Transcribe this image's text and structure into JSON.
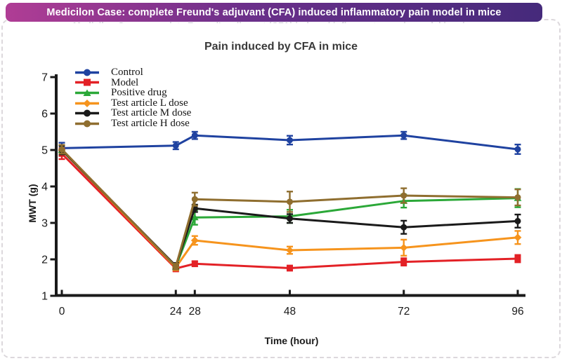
{
  "banner": {
    "title": "Medicilon Case: complete Freund's adjuvant (CFA) induced inflammatory pain model in mice"
  },
  "chart_data": {
    "type": "line",
    "title": "Pain induced by CFA in mice",
    "xlabel": "Time (hour)",
    "ylabel": "MWT (g)",
    "x": [
      0,
      24,
      28,
      48,
      72,
      96
    ],
    "xticks": [
      0,
      24,
      28,
      48,
      72,
      96
    ],
    "yticks": [
      1,
      2,
      3,
      4,
      5,
      6,
      7
    ],
    "xlim": [
      0,
      96
    ],
    "ylim": [
      1,
      7
    ],
    "grid": false,
    "legend_position": "top-left-inside",
    "error_bars": true,
    "series": [
      {
        "name": "Control",
        "color": "#1f42a0",
        "marker": "circle",
        "values": [
          5.05,
          5.12,
          5.4,
          5.27,
          5.4,
          5.02
        ],
        "errors": [
          0.15,
          0.1,
          0.1,
          0.12,
          0.1,
          0.13
        ]
      },
      {
        "name": "Model",
        "color": "#e32126",
        "marker": "square",
        "values": [
          4.9,
          1.75,
          1.88,
          1.76,
          1.93,
          2.02
        ],
        "errors": [
          0.15,
          0.08,
          0.07,
          0.07,
          0.1,
          0.1
        ]
      },
      {
        "name": "Positive drug",
        "color": "#2ba838",
        "marker": "triangle",
        "values": [
          5.0,
          1.8,
          3.15,
          3.18,
          3.6,
          3.68
        ],
        "errors": [
          0.12,
          0.08,
          0.2,
          0.18,
          0.18,
          0.25
        ]
      },
      {
        "name": "Test article L dose",
        "color": "#f6941d",
        "marker": "diamond",
        "values": [
          5.0,
          1.78,
          2.52,
          2.25,
          2.32,
          2.6
        ],
        "errors": [
          0.12,
          0.08,
          0.12,
          0.1,
          0.22,
          0.18
        ]
      },
      {
        "name": "Test article M dose",
        "color": "#1a1a1a",
        "marker": "circle",
        "values": [
          5.0,
          1.82,
          3.4,
          3.12,
          2.88,
          3.05
        ],
        "errors": [
          0.12,
          0.08,
          0.1,
          0.12,
          0.18,
          0.18
        ]
      },
      {
        "name": "Test article H dose",
        "color": "#8f6e2f",
        "marker": "circle",
        "values": [
          5.02,
          1.8,
          3.65,
          3.58,
          3.75,
          3.7
        ],
        "errors": [
          0.12,
          0.08,
          0.18,
          0.28,
          0.2,
          0.22
        ]
      }
    ]
  }
}
